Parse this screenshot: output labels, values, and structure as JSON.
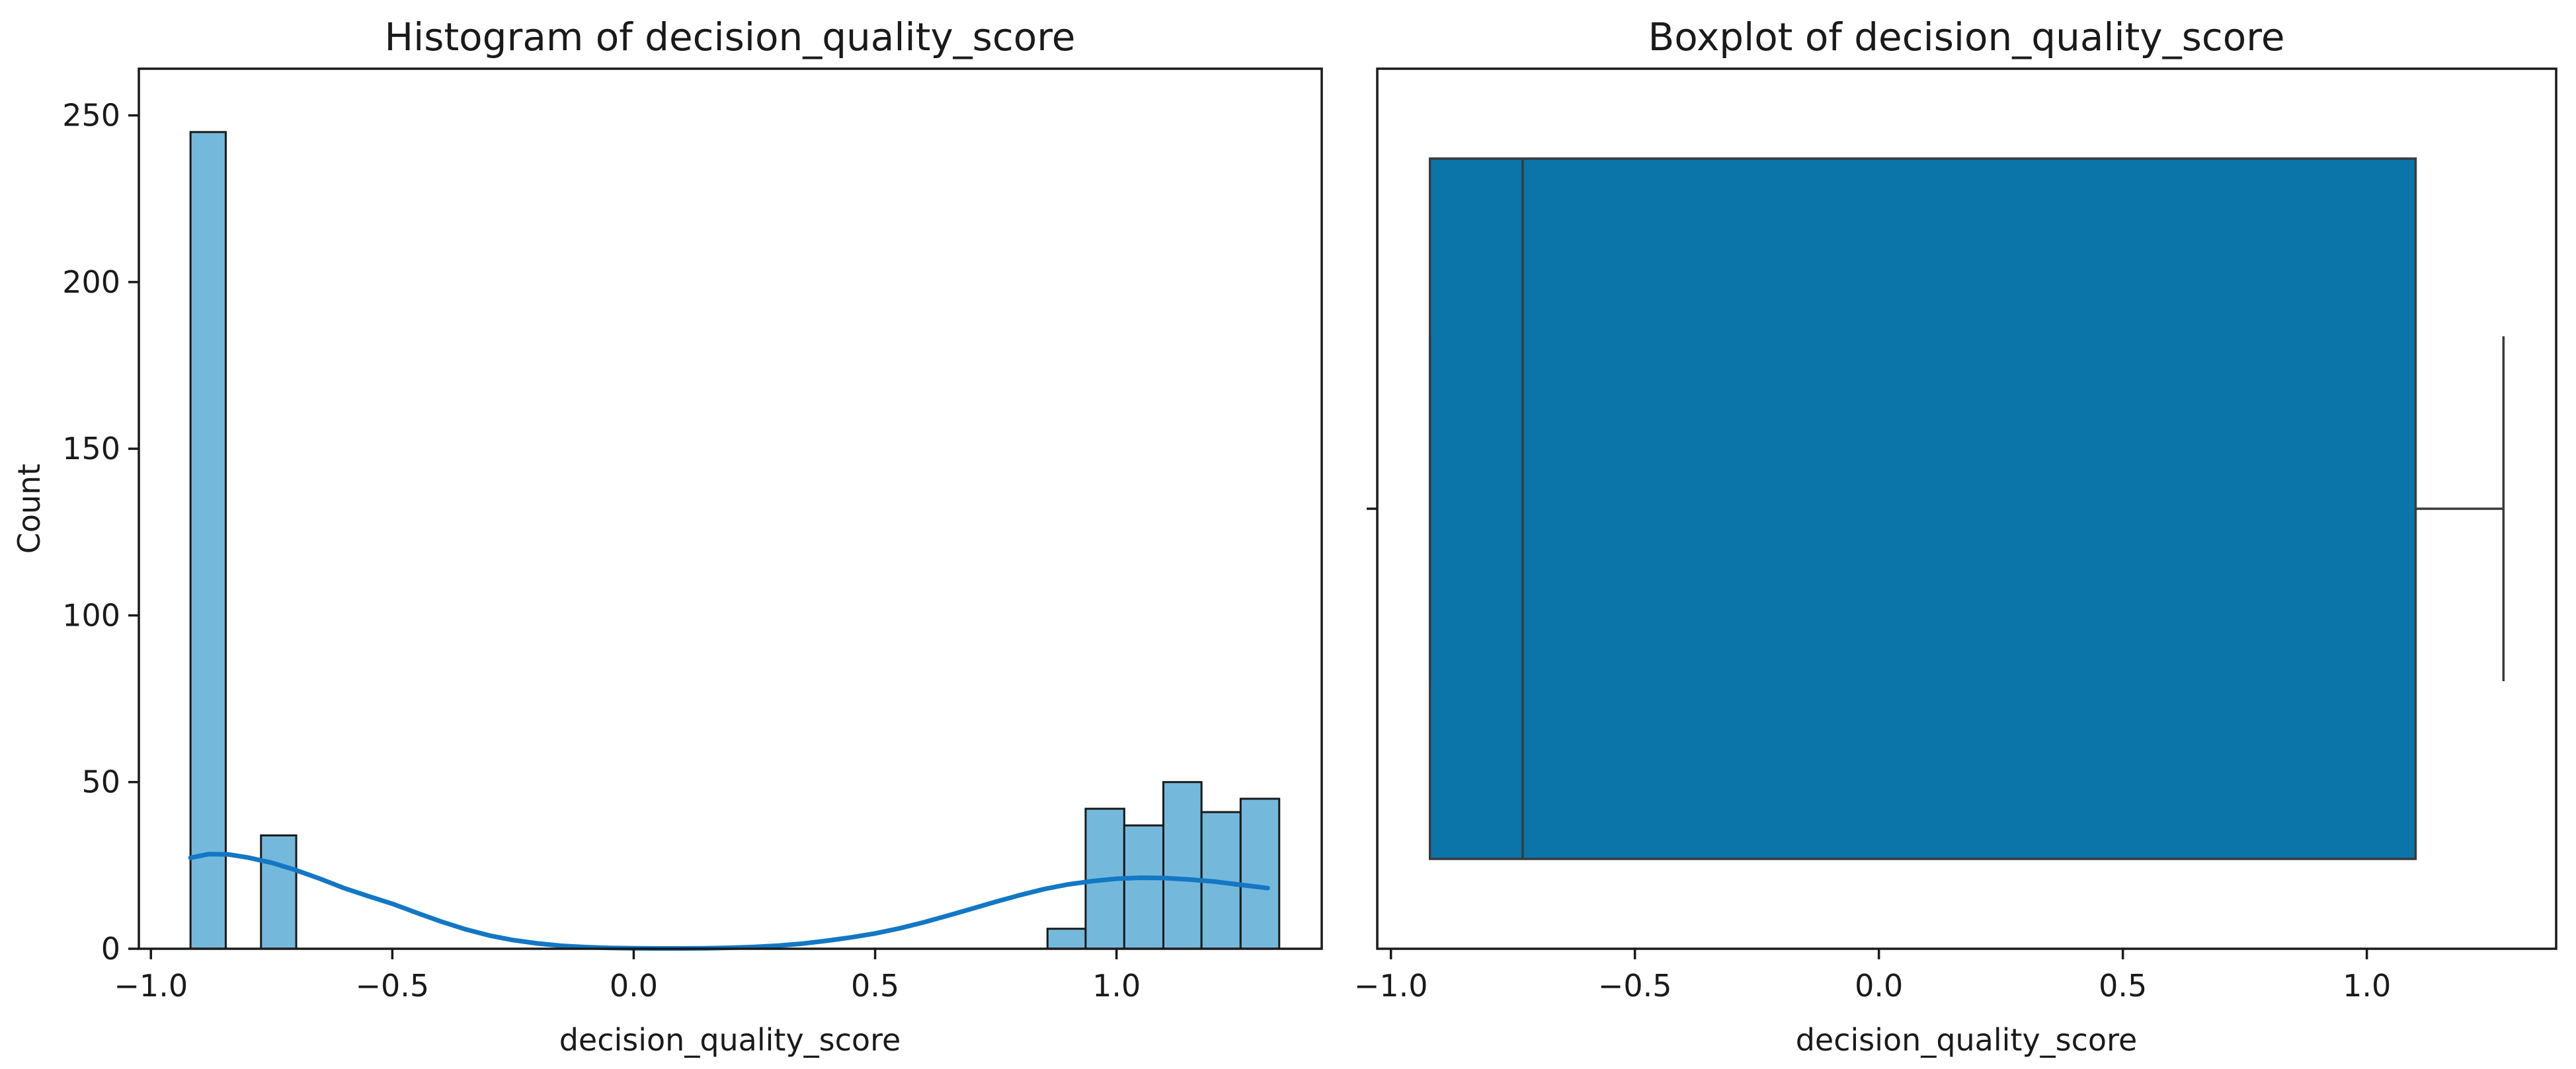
{
  "figure": {
    "background": "#ffffff"
  },
  "chart_data": [
    {
      "type": "histogram",
      "title": "Histogram of decision_quality_score",
      "xlabel": "decision_quality_score",
      "ylabel": "Count",
      "xlim": [
        -1.025,
        1.425
      ],
      "ylim": [
        0,
        264
      ],
      "grid": false,
      "legend": false,
      "xticks": [
        -1.0,
        -0.5,
        0.0,
        0.5,
        1.0
      ],
      "xtick_labels": [
        "−1.0",
        "−0.5",
        "0.0",
        "0.5",
        "1.0"
      ],
      "yticks": [
        0,
        50,
        100,
        150,
        200,
        250
      ],
      "ytick_labels": [
        "0",
        "50",
        "100",
        "150",
        "200",
        "250"
      ],
      "bars": [
        {
          "x0": -0.918,
          "x1": -0.845,
          "count": 245
        },
        {
          "x0": -0.772,
          "x1": -0.699,
          "count": 34
        },
        {
          "x0": 0.857,
          "x1": 0.936,
          "count": 6
        },
        {
          "x0": 0.936,
          "x1": 1.016,
          "count": 42
        },
        {
          "x0": 1.016,
          "x1": 1.097,
          "count": 37
        },
        {
          "x0": 1.097,
          "x1": 1.176,
          "count": 50
        },
        {
          "x0": 1.176,
          "x1": 1.257,
          "count": 41
        },
        {
          "x0": 1.257,
          "x1": 1.337,
          "count": 45
        }
      ],
      "kde_points": [
        [
          -0.918,
          27.3
        ],
        [
          -0.88,
          28.4
        ],
        [
          -0.84,
          28.3
        ],
        [
          -0.8,
          27.4
        ],
        [
          -0.75,
          25.8
        ],
        [
          -0.7,
          23.6
        ],
        [
          -0.65,
          21.0
        ],
        [
          -0.6,
          18.2
        ],
        [
          -0.55,
          15.8
        ],
        [
          -0.5,
          13.5
        ],
        [
          -0.45,
          10.8
        ],
        [
          -0.4,
          8.2
        ],
        [
          -0.35,
          5.9
        ],
        [
          -0.3,
          4.0
        ],
        [
          -0.25,
          2.6
        ],
        [
          -0.2,
          1.6
        ],
        [
          -0.15,
          0.9
        ],
        [
          -0.1,
          0.5
        ],
        [
          -0.05,
          0.25
        ],
        [
          0.0,
          0.15
        ],
        [
          0.05,
          0.1
        ],
        [
          0.1,
          0.1
        ],
        [
          0.15,
          0.15
        ],
        [
          0.2,
          0.3
        ],
        [
          0.25,
          0.55
        ],
        [
          0.3,
          0.95
        ],
        [
          0.35,
          1.55
        ],
        [
          0.4,
          2.4
        ],
        [
          0.45,
          3.4
        ],
        [
          0.5,
          4.6
        ],
        [
          0.55,
          6.1
        ],
        [
          0.6,
          7.9
        ],
        [
          0.65,
          9.9
        ],
        [
          0.7,
          12.0
        ],
        [
          0.75,
          14.1
        ],
        [
          0.8,
          16.1
        ],
        [
          0.85,
          17.9
        ],
        [
          0.9,
          19.3
        ],
        [
          0.95,
          20.3
        ],
        [
          1.0,
          21.0
        ],
        [
          1.05,
          21.3
        ],
        [
          1.1,
          21.2
        ],
        [
          1.15,
          20.8
        ],
        [
          1.2,
          20.2
        ],
        [
          1.25,
          19.3
        ],
        [
          1.313,
          18.2
        ]
      ],
      "colors": {
        "bar_fill": "#74b9dc",
        "bar_edge": "#1a1a1a",
        "kde_line": "#1377c4",
        "text": "#1a1a1a",
        "spine": "#1a1a1a"
      }
    },
    {
      "type": "boxplot",
      "orientation": "horizontal",
      "title": "Boxplot of decision_quality_score",
      "xlabel": "decision_quality_score",
      "xlim": [
        -1.028,
        1.388
      ],
      "grid": false,
      "legend": false,
      "xticks": [
        -1.0,
        -0.5,
        0.0,
        0.5,
        1.0
      ],
      "xtick_labels": [
        "−1.0",
        "−0.5",
        "0.0",
        "0.5",
        "1.0"
      ],
      "stats": {
        "whisker_low": -0.92,
        "q1": -0.92,
        "median": -0.73,
        "q3": 1.1,
        "whisker_high": 1.28
      },
      "colors": {
        "box_fill": "#0b75a9",
        "line": "#3a3a3a",
        "text": "#1a1a1a",
        "spine": "#1a1a1a"
      }
    }
  ]
}
